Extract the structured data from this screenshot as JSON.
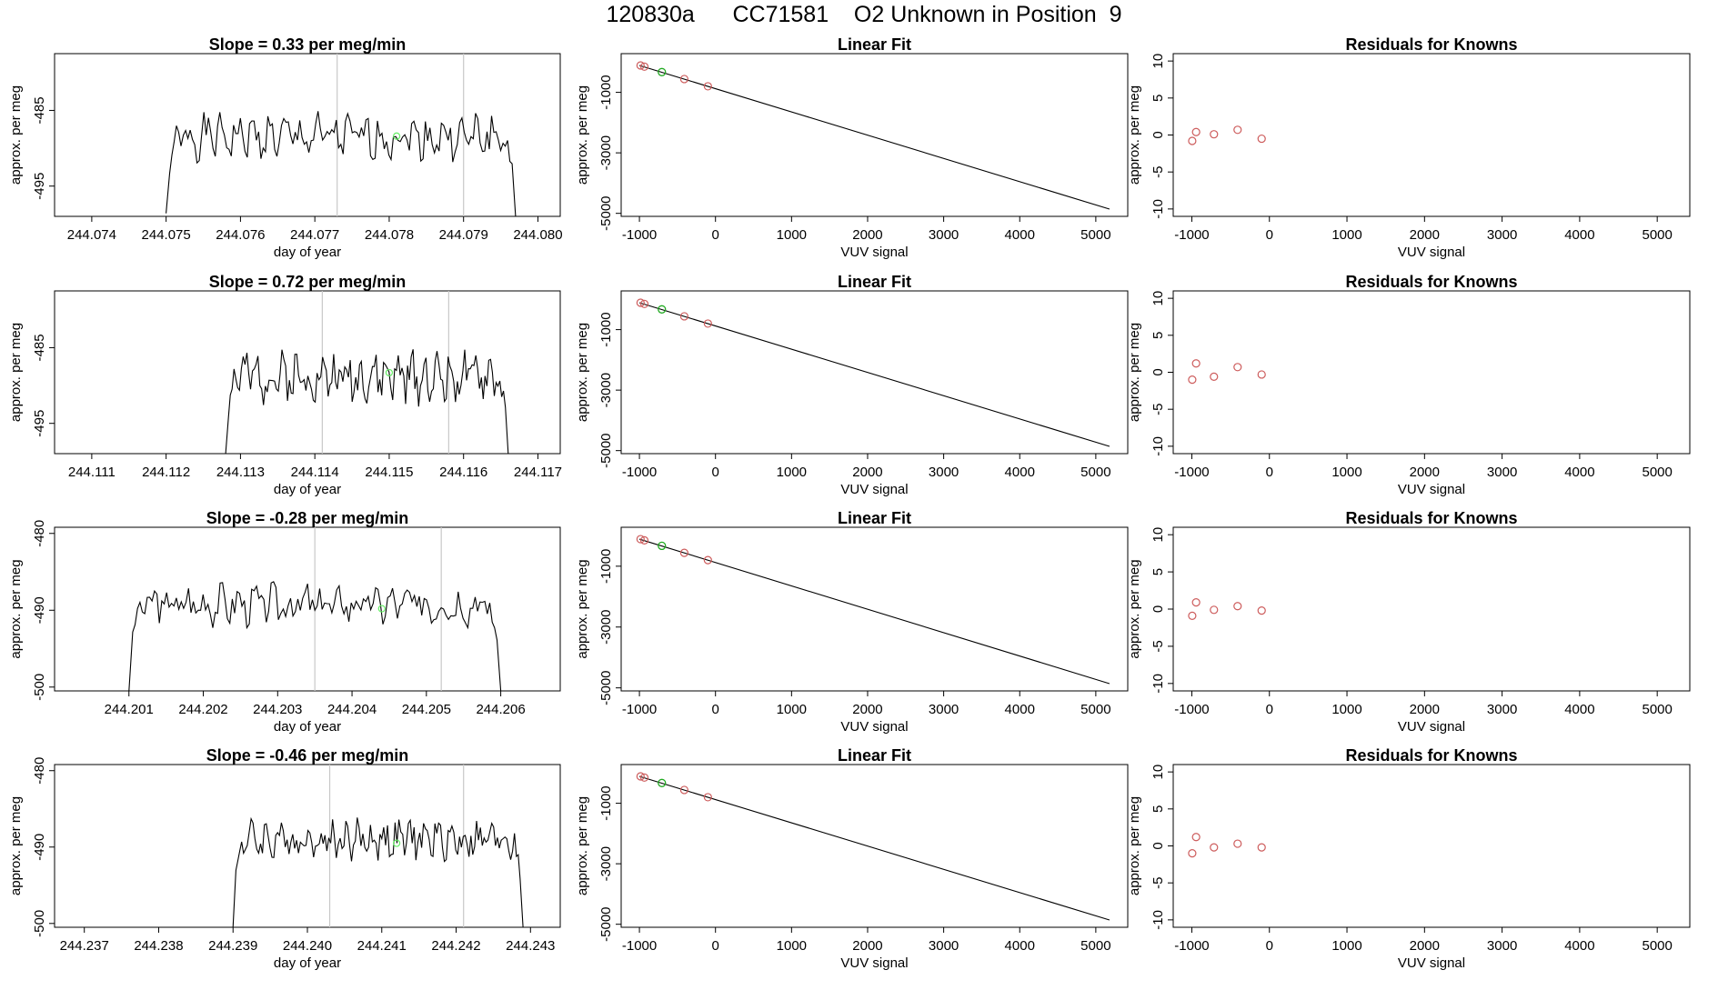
{
  "page": {
    "title": "120830a      CC71581    O2 Unknown in Position  9"
  },
  "colors": {
    "known": "#cd5c5c",
    "unknown": "#22aa22",
    "trace_unknown": "#66ee66",
    "line": "#000000",
    "marker": "#c8c8c8"
  },
  "chart_data": [
    {
      "type": "line",
      "title": "Slope =  0.33  per meg/min",
      "xlabel": "day of year",
      "ylabel": "approx. per meg",
      "xlim": [
        244.0735,
        244.0803
      ],
      "ylim": [
        -499.0,
        -477.5
      ],
      "xticks": [
        244.074,
        244.075,
        244.076,
        244.077,
        244.078,
        244.079,
        244.08
      ],
      "yticks": [
        -485,
        -495
      ],
      "vlines": [
        244.0773,
        244.079
      ],
      "unknown_point": {
        "x": 244.0781,
        "y": -488.4
      },
      "trace": {
        "x_start": 244.075,
        "x_end": 244.0797,
        "base": -488.5,
        "wobble": 2.2,
        "start_y": -498.6,
        "end_y": -499.0,
        "seed": 1
      }
    },
    {
      "type": "scatter",
      "title": "Linear Fit",
      "xlabel": "VUV signal",
      "ylabel": "approx. per meg",
      "xlim": [
        -1240,
        5420
      ],
      "ylim": [
        -5100,
        280
      ],
      "xticks": [
        -1000,
        0,
        1000,
        2000,
        3000,
        4000,
        5000
      ],
      "yticks": [
        -1000,
        -3000,
        -5000
      ],
      "fit_line": [
        [
          -1000,
          -110
        ],
        [
          5180,
          -4860
        ]
      ],
      "knowns": [
        [
          -985,
          -110
        ],
        [
          -935,
          -150
        ],
        [
          -410,
          -560
        ],
        [
          -100,
          -800
        ]
      ],
      "unknown": [
        [
          -705,
          -330
        ]
      ]
    },
    {
      "type": "scatter",
      "title": "Residuals for Knowns",
      "xlabel": "VUV signal",
      "ylabel": "approx. per meg",
      "xlim": [
        -1240,
        5420
      ],
      "ylim": [
        -11,
        11
      ],
      "xticks": [
        -1000,
        0,
        1000,
        2000,
        3000,
        4000,
        5000
      ],
      "yticks": [
        -10,
        -5,
        0,
        5,
        10
      ],
      "residuals": [
        [
          -995,
          -0.8
        ],
        [
          -945,
          0.4
        ],
        [
          -715,
          0.1
        ],
        [
          -410,
          0.7
        ],
        [
          -100,
          -0.5
        ]
      ]
    },
    {
      "type": "line",
      "title": "Slope =  0.72  per meg/min",
      "xlabel": "day of year",
      "ylabel": "approx. per meg",
      "xlim": [
        244.1105,
        244.1173
      ],
      "ylim": [
        -499.0,
        -477.5
      ],
      "xticks": [
        244.111,
        244.112,
        244.113,
        244.114,
        244.115,
        244.116,
        244.117
      ],
      "yticks": [
        -485,
        -495
      ],
      "vlines": [
        244.1141,
        244.1158
      ],
      "unknown_point": {
        "x": 244.115,
        "y": -488.3
      },
      "trace": {
        "x_start": 244.1128,
        "x_end": 244.1166,
        "base": -488.8,
        "wobble": 2.5,
        "start_y": -499.0,
        "end_y": -499.0,
        "seed": 2
      }
    },
    {
      "type": "scatter",
      "title": "Linear Fit",
      "xlabel": "VUV signal",
      "ylabel": "approx. per meg",
      "xlim": [
        -1240,
        5420
      ],
      "ylim": [
        -5100,
        280
      ],
      "xticks": [
        -1000,
        0,
        1000,
        2000,
        3000,
        4000,
        5000
      ],
      "yticks": [
        -1000,
        -3000,
        -5000
      ],
      "fit_line": [
        [
          -1000,
          -110
        ],
        [
          5180,
          -4860
        ]
      ],
      "knowns": [
        [
          -985,
          -110
        ],
        [
          -935,
          -150
        ],
        [
          -410,
          -560
        ],
        [
          -100,
          -800
        ]
      ],
      "unknown": [
        [
          -705,
          -330
        ]
      ]
    },
    {
      "type": "scatter",
      "title": "Residuals for Knowns",
      "xlabel": "VUV signal",
      "ylabel": "approx. per meg",
      "xlim": [
        -1240,
        5420
      ],
      "ylim": [
        -11,
        11
      ],
      "xticks": [
        -1000,
        0,
        1000,
        2000,
        3000,
        4000,
        5000
      ],
      "yticks": [
        -10,
        -5,
        0,
        5,
        10
      ],
      "residuals": [
        [
          -995,
          -1.0
        ],
        [
          -945,
          1.2
        ],
        [
          -715,
          -0.6
        ],
        [
          -410,
          0.7
        ],
        [
          -100,
          -0.3
        ]
      ]
    },
    {
      "type": "line",
      "title": "Slope =  -0.28  per meg/min",
      "xlabel": "day of year",
      "ylabel": "approx. per meg",
      "xlim": [
        244.2,
        244.2068
      ],
      "ylim": [
        -500.5,
        -479.2
      ],
      "xticks": [
        244.201,
        244.202,
        244.203,
        244.204,
        244.205,
        244.206
      ],
      "yticks": [
        -480,
        -490,
        -500
      ],
      "vlines": [
        244.2035,
        244.2052
      ],
      "unknown_point": {
        "x": 244.2044,
        "y": -489.8
      },
      "trace": {
        "x_start": 244.201,
        "x_end": 244.206,
        "base": -489.2,
        "wobble": 2.0,
        "start_y": -500.5,
        "end_y": -500.5,
        "seed": 3
      }
    },
    {
      "type": "scatter",
      "title": "Linear Fit",
      "xlabel": "VUV signal",
      "ylabel": "approx. per meg",
      "xlim": [
        -1240,
        5420
      ],
      "ylim": [
        -5100,
        280
      ],
      "xticks": [
        -1000,
        0,
        1000,
        2000,
        3000,
        4000,
        5000
      ],
      "yticks": [
        -1000,
        -3000,
        -5000
      ],
      "fit_line": [
        [
          -1000,
          -110
        ],
        [
          5180,
          -4860
        ]
      ],
      "knowns": [
        [
          -985,
          -110
        ],
        [
          -935,
          -150
        ],
        [
          -410,
          -560
        ],
        [
          -100,
          -800
        ]
      ],
      "unknown": [
        [
          -705,
          -330
        ]
      ]
    },
    {
      "type": "scatter",
      "title": "Residuals for Knowns",
      "xlabel": "VUV signal",
      "ylabel": "approx. per meg",
      "xlim": [
        -1240,
        5420
      ],
      "ylim": [
        -11,
        11
      ],
      "xticks": [
        -1000,
        0,
        1000,
        2000,
        3000,
        4000,
        5000
      ],
      "yticks": [
        -10,
        -5,
        0,
        5,
        10
      ],
      "residuals": [
        [
          -995,
          -0.9
        ],
        [
          -945,
          0.9
        ],
        [
          -715,
          -0.1
        ],
        [
          -410,
          0.4
        ],
        [
          -100,
          -0.2
        ]
      ]
    },
    {
      "type": "line",
      "title": "Slope =  -0.46  per meg/min",
      "xlabel": "day of year",
      "ylabel": "approx. per meg",
      "xlim": [
        244.2366,
        244.2434
      ],
      "ylim": [
        -500.5,
        -479.2
      ],
      "xticks": [
        244.237,
        244.238,
        244.239,
        244.24,
        244.241,
        244.242,
        244.243
      ],
      "yticks": [
        -480,
        -490,
        -500
      ],
      "vlines": [
        244.2403,
        244.2421
      ],
      "unknown_point": {
        "x": 244.2412,
        "y": -489.5
      },
      "trace": {
        "x_start": 244.239,
        "x_end": 244.2429,
        "base": -489.0,
        "wobble": 2.0,
        "start_y": -500.5,
        "end_y": -500.5,
        "seed": 4
      }
    },
    {
      "type": "scatter",
      "title": "Linear Fit",
      "xlabel": "VUV signal",
      "ylabel": "approx. per meg",
      "xlim": [
        -1240,
        5420
      ],
      "ylim": [
        -5100,
        280
      ],
      "xticks": [
        -1000,
        0,
        1000,
        2000,
        3000,
        4000,
        5000
      ],
      "yticks": [
        -1000,
        -3000,
        -5000
      ],
      "fit_line": [
        [
          -1000,
          -110
        ],
        [
          5180,
          -4860
        ]
      ],
      "knowns": [
        [
          -985,
          -110
        ],
        [
          -935,
          -150
        ],
        [
          -410,
          -560
        ],
        [
          -100,
          -800
        ]
      ],
      "unknown": [
        [
          -705,
          -330
        ]
      ]
    },
    {
      "type": "scatter",
      "title": "Residuals for Knowns",
      "xlabel": "VUV signal",
      "ylabel": "approx. per meg",
      "xlim": [
        -1240,
        5420
      ],
      "ylim": [
        -11,
        11
      ],
      "xticks": [
        -1000,
        0,
        1000,
        2000,
        3000,
        4000,
        5000
      ],
      "yticks": [
        -10,
        -5,
        0,
        5,
        10
      ],
      "residuals": [
        [
          -995,
          -1.0
        ],
        [
          -945,
          1.2
        ],
        [
          -715,
          -0.2
        ],
        [
          -410,
          0.3
        ],
        [
          -100,
          -0.2
        ]
      ]
    }
  ]
}
